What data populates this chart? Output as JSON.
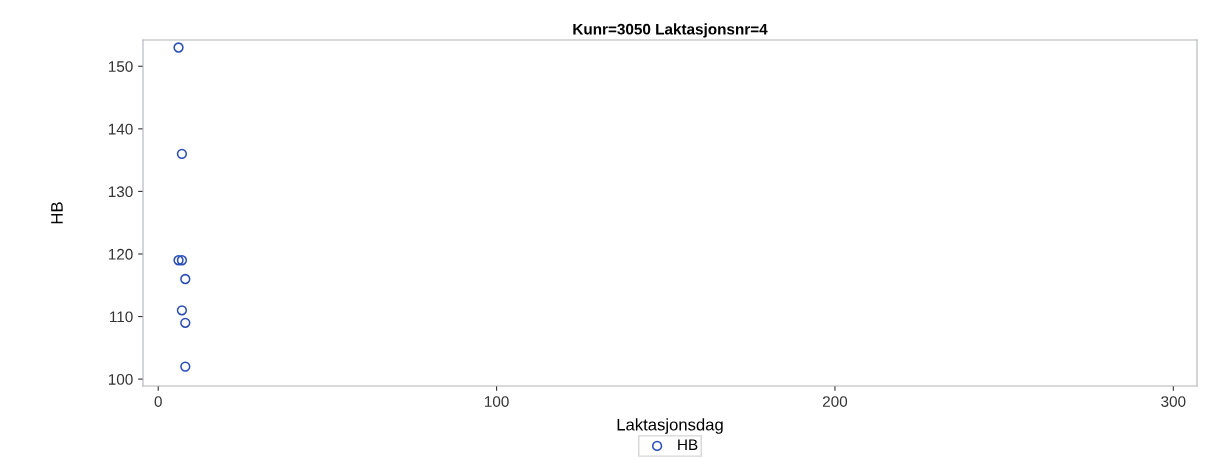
{
  "chart_data": {
    "type": "scatter",
    "title": "Kunr=3050 Laktasjonsnr=4",
    "xlabel": "Laktasjonsdag",
    "ylabel": "HB",
    "series": [
      {
        "name": "HB",
        "color": "#2a4db5",
        "x": [
          6,
          7,
          6,
          7,
          8,
          7,
          8,
          8
        ],
        "values": [
          153,
          136,
          119,
          119,
          116,
          111,
          109,
          102
        ]
      }
    ],
    "xlim": [
      -4.5,
      307
    ],
    "ylim": [
      98.9,
      154.2
    ],
    "xticks": [
      0,
      100,
      200,
      300
    ],
    "yticks": [
      100,
      110,
      120,
      130,
      140,
      150
    ],
    "marker": "circle",
    "legend": "bottom",
    "grid": false
  }
}
